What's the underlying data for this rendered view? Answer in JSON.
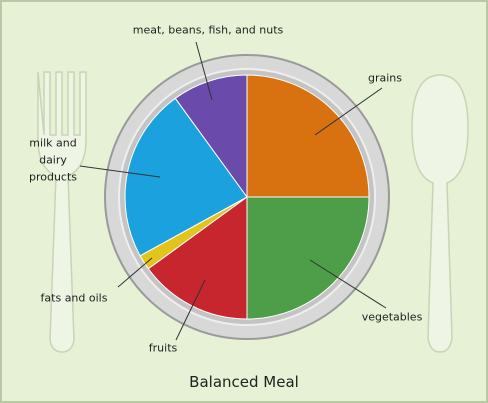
{
  "chart_data": {
    "type": "pie",
    "title": "Balanced Meal",
    "categories": [
      "grains",
      "vegetables",
      "fruits",
      "fats and oils",
      "milk and\ndairy\nproducts",
      "meat, beans, fish, and nuts"
    ],
    "values": [
      25,
      25,
      15,
      2,
      23,
      10
    ],
    "colors": [
      "#d8710f",
      "#4e9d49",
      "#c8262f",
      "#e2c41c",
      "#1ba1de",
      "#6a4bab"
    ]
  }
}
